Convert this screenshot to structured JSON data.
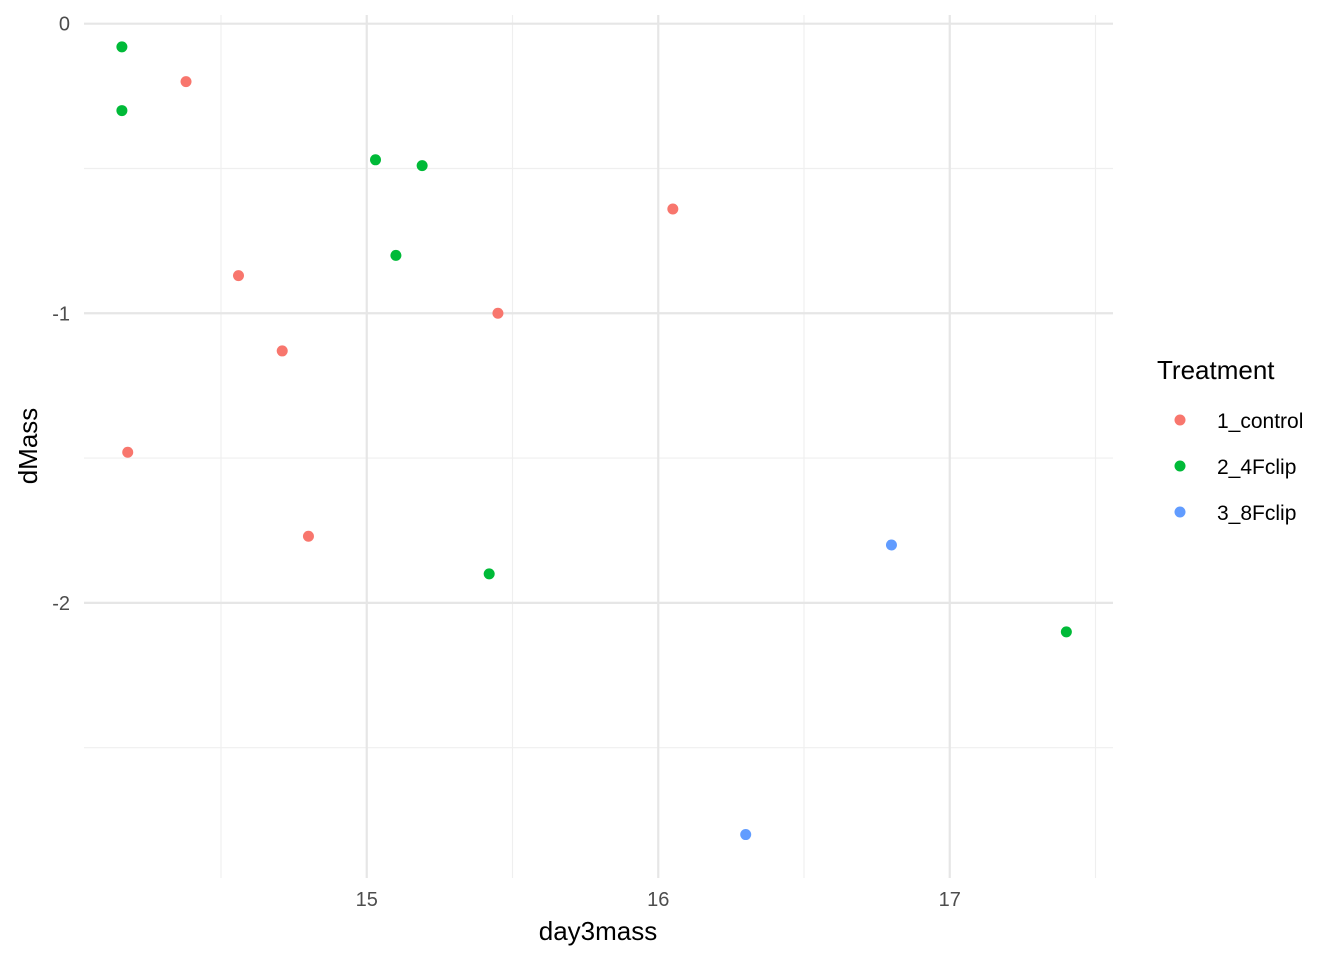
{
  "chart_data": {
    "type": "scatter",
    "title": "",
    "xlabel": "day3mass",
    "ylabel": "dMass",
    "xlim": [
      14.03,
      17.56
    ],
    "ylim": [
      -2.95,
      0.03
    ],
    "x_ticks": [
      15,
      16,
      17
    ],
    "y_ticks": [
      0,
      -1,
      -2
    ],
    "x_tick_labels": [
      "15",
      "16",
      "17"
    ],
    "y_tick_labels": [
      "0",
      "-1",
      "-2"
    ],
    "grid": true,
    "legend": {
      "title": "Treatment",
      "placement": "right"
    },
    "series": [
      {
        "name": "1_control",
        "color": "#F8766D",
        "points": [
          {
            "x": 14.38,
            "y": -0.2
          },
          {
            "x": 14.56,
            "y": -0.87
          },
          {
            "x": 14.71,
            "y": -1.13
          },
          {
            "x": 15.45,
            "y": -1.0
          },
          {
            "x": 16.05,
            "y": -0.64
          },
          {
            "x": 14.18,
            "y": -1.48
          },
          {
            "x": 14.8,
            "y": -1.77
          }
        ]
      },
      {
        "name": "2_4Fclip",
        "color": "#00BA38",
        "points": [
          {
            "x": 14.16,
            "y": -0.08
          },
          {
            "x": 14.16,
            "y": -0.3
          },
          {
            "x": 15.03,
            "y": -0.47
          },
          {
            "x": 15.19,
            "y": -0.49
          },
          {
            "x": 15.1,
            "y": -0.8
          },
          {
            "x": 15.42,
            "y": -1.9
          },
          {
            "x": 17.4,
            "y": -2.1
          }
        ]
      },
      {
        "name": "3_8Fclip",
        "color": "#619CFF",
        "points": [
          {
            "x": 16.8,
            "y": -1.8
          },
          {
            "x": 16.3,
            "y": -2.8
          }
        ]
      }
    ]
  }
}
